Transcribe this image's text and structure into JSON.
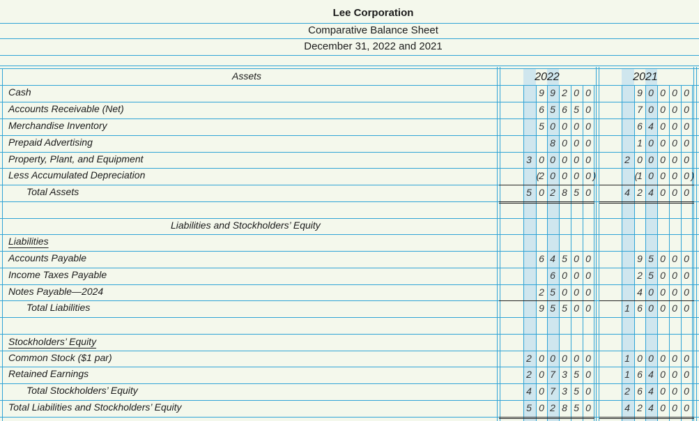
{
  "company": "Lee Corporation",
  "statement": "Comparative Balance Sheet",
  "date": "December 31, 2022 and 2021",
  "headers": {
    "assets": "Assets",
    "year_2022": "2022",
    "year_2021": "2021",
    "liab_equity": "Liabilities and Stockholders’ Equity"
  },
  "rows": [
    {
      "label": "Cash",
      "v2022": "99200",
      "v2021": "90000"
    },
    {
      "label": "Accounts Receivable (Net)",
      "v2022": "65650",
      "v2021": "70000"
    },
    {
      "label": "Merchandise Inventory",
      "v2022": "50000",
      "v2021": "64000"
    },
    {
      "label": "Prepaid Advertising",
      "v2022": "8000",
      "v2021": "10000"
    },
    {
      "label": "Property, Plant, and Equipment",
      "v2022": "300000",
      "v2021": "200000"
    },
    {
      "label": "Less Accumulated Depreciation",
      "v2022": "(20000)",
      "v2021": "(10000)"
    },
    {
      "label": "Total Assets",
      "v2022": "502850",
      "v2021": "424000"
    },
    {
      "label": "",
      "v2022": "",
      "v2021": ""
    },
    {
      "label": "",
      "v2022": "",
      "v2021": ""
    },
    {
      "label": "Liabilities",
      "v2022": "",
      "v2021": ""
    },
    {
      "label": "Accounts Payable",
      "v2022": "64500",
      "v2021": "95000"
    },
    {
      "label": "Income Taxes Payable",
      "v2022": "6000",
      "v2021": "25000"
    },
    {
      "label": "Notes Payable—2024",
      "v2022": "25000",
      "v2021": "40000"
    },
    {
      "label": "Total Liabilities",
      "v2022": "95500",
      "v2021": "160000"
    },
    {
      "label": "",
      "v2022": "",
      "v2021": ""
    },
    {
      "label": "Stockholders’ Equity",
      "v2022": "",
      "v2021": ""
    },
    {
      "label": "Common Stock ($1 par)",
      "v2022": "200000",
      "v2021": "100000"
    },
    {
      "label": "Retained Earnings",
      "v2022": "207350",
      "v2021": "164000"
    },
    {
      "label": "Total Stockholders’ Equity",
      "v2022": "407350",
      "v2021": "264000"
    },
    {
      "label": "Total Liabilities and Stockholders’ Equity",
      "v2022": "502850",
      "v2021": "424000"
    }
  ]
}
